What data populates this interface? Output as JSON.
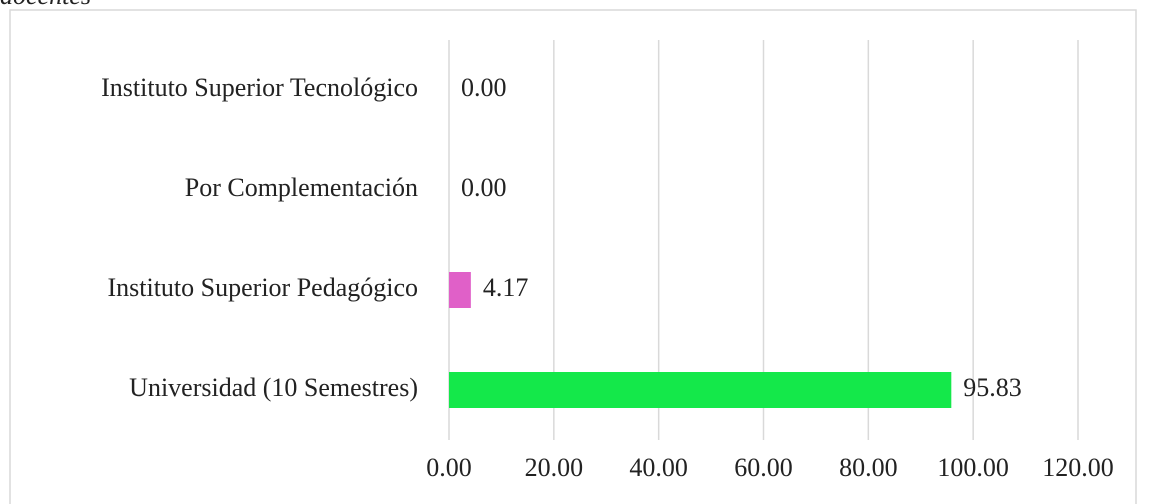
{
  "chart_data": {
    "type": "bar",
    "orientation": "horizontal",
    "title": "docentes",
    "categories": [
      "Universidad (10 Semestres)",
      "Instituto Superior Pedagógico",
      "Por Complementación",
      "Instituto Superior Tecnológico"
    ],
    "values": [
      95.83,
      4.17,
      0,
      0
    ],
    "value_labels": [
      "95.83",
      "4.17",
      "0.00",
      "0.00"
    ],
    "colors": [
      "#14e84a",
      "#e060c8",
      null,
      null
    ],
    "xlim": [
      0,
      120
    ],
    "xticks": [
      {
        "value": 0,
        "label": "0.00"
      },
      {
        "value": 20,
        "label": "20.00"
      },
      {
        "value": 40,
        "label": "40.00"
      },
      {
        "value": 60,
        "label": "60.00"
      },
      {
        "value": 80,
        "label": "80.00"
      },
      {
        "value": 100,
        "label": "100.00"
      },
      {
        "value": 120,
        "label": "120.00"
      }
    ],
    "grid": true
  }
}
